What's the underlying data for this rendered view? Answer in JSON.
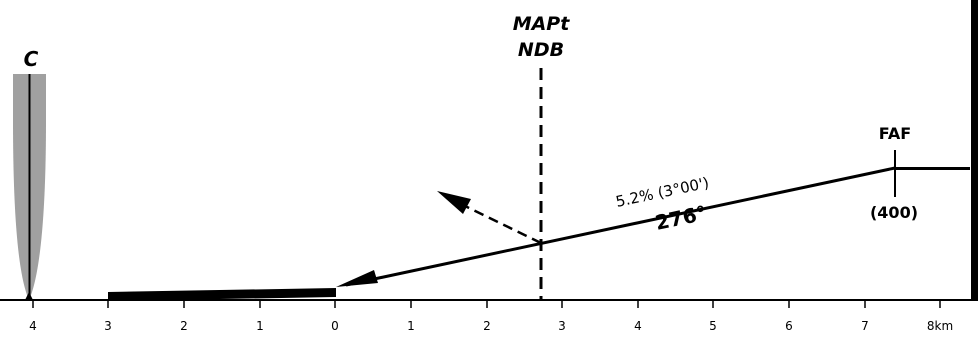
{
  "runway_label": "C",
  "mapt": {
    "line1": "MAPt",
    "line2": "NDB"
  },
  "faf": {
    "label": "FAF",
    "altitude": "(400)"
  },
  "gradient": "5.2% (3°00')",
  "course": "276°",
  "distance_scale": {
    "unit": "km",
    "ticks": [
      {
        "label": "4"
      },
      {
        "label": "3"
      },
      {
        "label": "2"
      },
      {
        "label": "1"
      },
      {
        "label": "0"
      },
      {
        "label": "1"
      },
      {
        "label": "2"
      },
      {
        "label": "3"
      },
      {
        "label": "4"
      },
      {
        "label": "5"
      },
      {
        "label": "6"
      },
      {
        "label": "7"
      },
      {
        "label": "8km"
      }
    ]
  },
  "colors": {
    "ink": "#000000",
    "runway_shade": "#a0a0a0"
  }
}
